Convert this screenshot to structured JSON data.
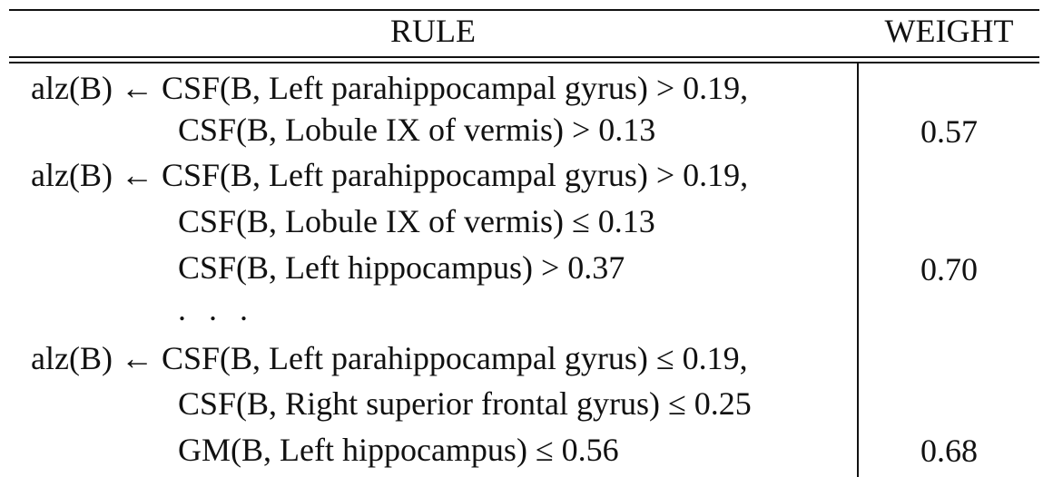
{
  "header": {
    "rule_label": "RULE",
    "weight_label": "WEIGHT"
  },
  "rules": [
    {
      "head": "alz(B) ← CSF(B, Left parahippocampal gyrus) > 0.19,",
      "continuations": [
        "CSF(B, Lobule IX of vermis) > 0.13"
      ],
      "weight": "0.57"
    },
    {
      "head": "alz(B) ← CSF(B, Left parahippocampal gyrus) > 0.19,",
      "continuations": [
        "CSF(B, Lobule IX of vermis) ≤ 0.13",
        "CSF(B, Left hippocampus) > 0.37"
      ],
      "weight": "0.70"
    },
    {
      "ellipsis": ". . ."
    },
    {
      "head": "alz(B) ← CSF(B, Left parahippocampal gyrus) ≤ 0.19,",
      "continuations": [
        "CSF(B, Right superior frontal gyrus) ≤ 0.25",
        "GM(B, Left hippocampus) ≤ 0.56"
      ],
      "weight": "0.68"
    }
  ]
}
